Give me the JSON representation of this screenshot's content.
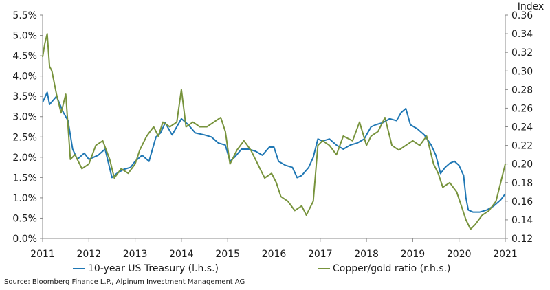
{
  "chart_data": {
    "type": "line",
    "ylabel_right": "Index",
    "x_ticks": [
      "2011",
      "2012",
      "2013",
      "2014",
      "2015",
      "2016",
      "2017",
      "2018",
      "2019",
      "2020",
      "2021"
    ],
    "y_left_ticks": [
      "0.0%",
      "0.5%",
      "1.0%",
      "1.5%",
      "2.0%",
      "2.5%",
      "3.0%",
      "3.5%",
      "4.0%",
      "4.5%",
      "5.0%",
      "5.5%"
    ],
    "y_right_ticks": [
      "0.12",
      "0.14",
      "0.16",
      "0.18",
      "0.20",
      "0.22",
      "0.24",
      "0.26",
      "0.28",
      "0.30",
      "0.32",
      "0.34",
      "0.36"
    ],
    "x_range": [
      2011,
      2021
    ],
    "y_left_range": [
      0,
      5.5
    ],
    "y_right_range": [
      0.12,
      0.36
    ],
    "grid": false,
    "legend_position": "bottom",
    "series": [
      {
        "name": "10-year US Treasury (l.h.s.)",
        "axis": "left",
        "color": "#1f77b4",
        "x": [
          2011.0,
          2011.1,
          2011.15,
          2011.3,
          2011.45,
          2011.55,
          2011.65,
          2011.75,
          2011.9,
          2012.0,
          2012.2,
          2012.35,
          2012.5,
          2012.6,
          2012.75,
          2012.9,
          2013.0,
          2013.15,
          2013.3,
          2013.45,
          2013.55,
          2013.65,
          2013.8,
          2014.0,
          2014.15,
          2014.3,
          2014.5,
          2014.65,
          2014.8,
          2014.95,
          2015.05,
          2015.15,
          2015.3,
          2015.45,
          2015.6,
          2015.75,
          2015.9,
          2016.0,
          2016.1,
          2016.25,
          2016.4,
          2016.5,
          2016.6,
          2016.75,
          2016.85,
          2016.95,
          2017.05,
          2017.2,
          2017.35,
          2017.5,
          2017.65,
          2017.8,
          2017.95,
          2018.1,
          2018.2,
          2018.35,
          2018.5,
          2018.65,
          2018.75,
          2018.85,
          2018.95,
          2019.1,
          2019.25,
          2019.4,
          2019.5,
          2019.6,
          2019.7,
          2019.8,
          2019.9,
          2020.0,
          2020.1,
          2020.15,
          2020.2,
          2020.3,
          2020.45,
          2020.6,
          2020.75,
          2020.9,
          2021.0
        ],
        "values": [
          3.35,
          3.6,
          3.3,
          3.5,
          3.1,
          2.9,
          2.2,
          1.95,
          2.1,
          1.95,
          2.05,
          2.2,
          1.5,
          1.6,
          1.7,
          1.75,
          1.9,
          2.05,
          1.9,
          2.5,
          2.6,
          2.85,
          2.55,
          2.95,
          2.8,
          2.6,
          2.55,
          2.5,
          2.35,
          2.3,
          1.9,
          2.0,
          2.2,
          2.2,
          2.15,
          2.05,
          2.25,
          2.25,
          1.9,
          1.8,
          1.75,
          1.5,
          1.55,
          1.75,
          2.0,
          2.45,
          2.4,
          2.45,
          2.3,
          2.2,
          2.3,
          2.35,
          2.45,
          2.75,
          2.8,
          2.85,
          2.95,
          2.9,
          3.1,
          3.2,
          2.8,
          2.7,
          2.55,
          2.3,
          2.05,
          1.6,
          1.75,
          1.85,
          1.9,
          1.8,
          1.55,
          1.0,
          0.7,
          0.65,
          0.65,
          0.7,
          0.8,
          0.95,
          1.1
        ]
      },
      {
        "name": "Copper/gold ratio (r.h.s.)",
        "axis": "right",
        "color": "#77933c",
        "x": [
          2011.0,
          2011.05,
          2011.1,
          2011.15,
          2011.2,
          2011.3,
          2011.4,
          2011.5,
          2011.6,
          2011.7,
          2011.85,
          2012.0,
          2012.15,
          2012.3,
          2012.45,
          2012.55,
          2012.7,
          2012.85,
          2013.0,
          2013.1,
          2013.25,
          2013.4,
          2013.5,
          2013.6,
          2013.75,
          2013.9,
          2014.0,
          2014.1,
          2014.25,
          2014.4,
          2014.55,
          2014.7,
          2014.85,
          2014.95,
          2015.05,
          2015.2,
          2015.35,
          2015.5,
          2015.65,
          2015.8,
          2015.95,
          2016.05,
          2016.15,
          2016.3,
          2016.45,
          2016.6,
          2016.7,
          2016.85,
          2016.95,
          2017.05,
          2017.2,
          2017.35,
          2017.5,
          2017.7,
          2017.85,
          2018.0,
          2018.1,
          2018.25,
          2018.4,
          2018.55,
          2018.7,
          2018.85,
          2019.0,
          2019.15,
          2019.3,
          2019.45,
          2019.55,
          2019.65,
          2019.8,
          2019.95,
          2020.05,
          2020.15,
          2020.25,
          2020.35,
          2020.5,
          2020.65,
          2020.8,
          2020.9,
          2020.95,
          2021.0
        ],
        "values": [
          0.315,
          0.33,
          0.34,
          0.305,
          0.3,
          0.275,
          0.255,
          0.275,
          0.205,
          0.21,
          0.195,
          0.2,
          0.22,
          0.225,
          0.205,
          0.185,
          0.195,
          0.19,
          0.2,
          0.215,
          0.23,
          0.24,
          0.23,
          0.245,
          0.24,
          0.245,
          0.28,
          0.24,
          0.245,
          0.24,
          0.24,
          0.245,
          0.25,
          0.235,
          0.2,
          0.215,
          0.225,
          0.215,
          0.2,
          0.185,
          0.19,
          0.18,
          0.165,
          0.16,
          0.15,
          0.155,
          0.145,
          0.16,
          0.22,
          0.225,
          0.22,
          0.21,
          0.23,
          0.225,
          0.245,
          0.22,
          0.23,
          0.235,
          0.25,
          0.22,
          0.215,
          0.22,
          0.225,
          0.22,
          0.23,
          0.2,
          0.19,
          0.175,
          0.18,
          0.17,
          0.155,
          0.14,
          0.13,
          0.135,
          0.145,
          0.15,
          0.16,
          0.18,
          0.19,
          0.2
        ]
      }
    ]
  },
  "source": "Source: Bloomberg Finance L.P., Alpinum Investment Management AG"
}
